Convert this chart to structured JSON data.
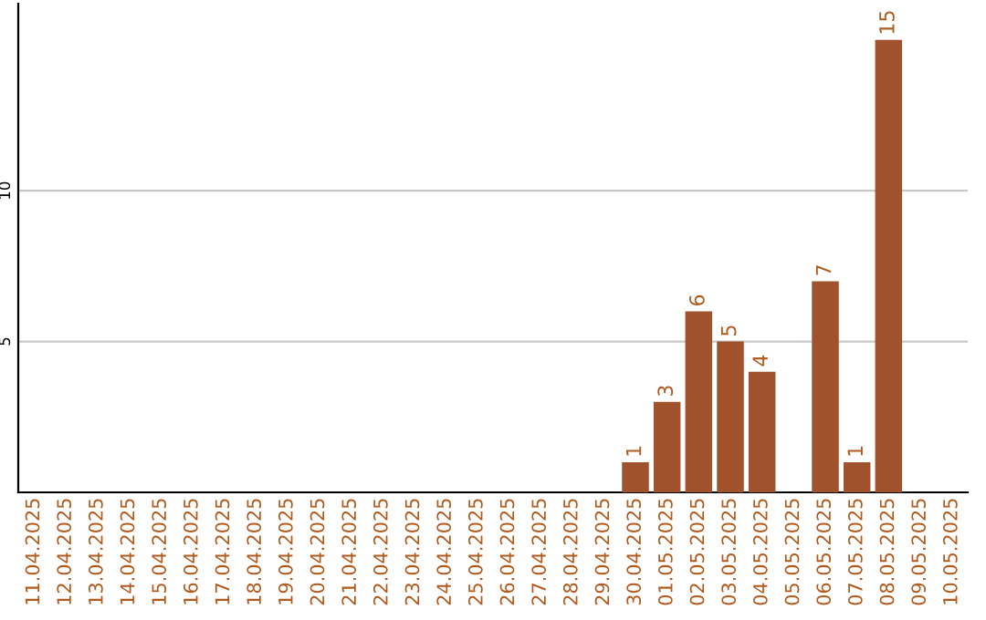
{
  "chart_data": {
    "type": "bar",
    "categories": [
      "11.04.2025",
      "12.04.2025",
      "13.04.2025",
      "14.04.2025",
      "15.04.2025",
      "16.04.2025",
      "17.04.2025",
      "18.04.2025",
      "19.04.2025",
      "20.04.2025",
      "21.04.2025",
      "22.04.2025",
      "23.04.2025",
      "24.04.2025",
      "25.04.2025",
      "26.04.2025",
      "27.04.2025",
      "28.04.2025",
      "29.04.2025",
      "30.04.2025",
      "01.05.2025",
      "02.05.2025",
      "03.05.2025",
      "04.05.2025",
      "05.05.2025",
      "06.05.2025",
      "07.05.2025",
      "08.05.2025",
      "09.05.2025",
      "10.05.2025"
    ],
    "values": [
      null,
      null,
      null,
      null,
      null,
      null,
      null,
      null,
      null,
      null,
      null,
      null,
      null,
      null,
      null,
      null,
      null,
      null,
      null,
      1,
      3,
      6,
      5,
      4,
      null,
      7,
      1,
      15,
      null,
      null
    ],
    "color": "#a0522d",
    "ylim": [
      0,
      16.2
    ],
    "yticks": [
      5,
      10
    ],
    "grid": "y",
    "data_labels": true,
    "legend": false
  }
}
